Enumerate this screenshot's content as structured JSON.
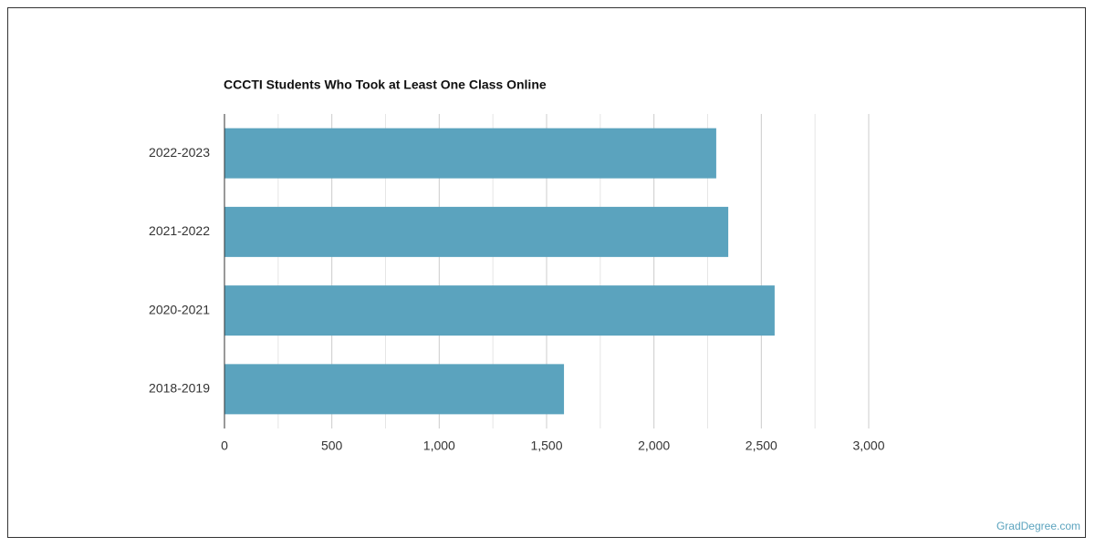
{
  "chart_data": {
    "type": "bar",
    "orientation": "horizontal",
    "title": "CCCTI Students Who Took at Least One Class Online",
    "categories": [
      "2022-2023",
      "2021-2022",
      "2020-2021",
      "2018-2019"
    ],
    "values": [
      2290,
      2346,
      2562,
      1581
    ],
    "color": "#5ba3be",
    "xlim": [
      0,
      3000
    ],
    "xticks": [
      0,
      500,
      {
        "value": 1000,
        "label": "1,000"
      },
      {
        "value": 1500,
        "label": "1,500"
      },
      {
        "value": 2000,
        "label": "2,000"
      },
      {
        "value": 2500,
        "label": "2,500"
      },
      {
        "value": 3000,
        "label": "3,000"
      }
    ],
    "grid": true
  },
  "watermark": "GradDegree.com"
}
